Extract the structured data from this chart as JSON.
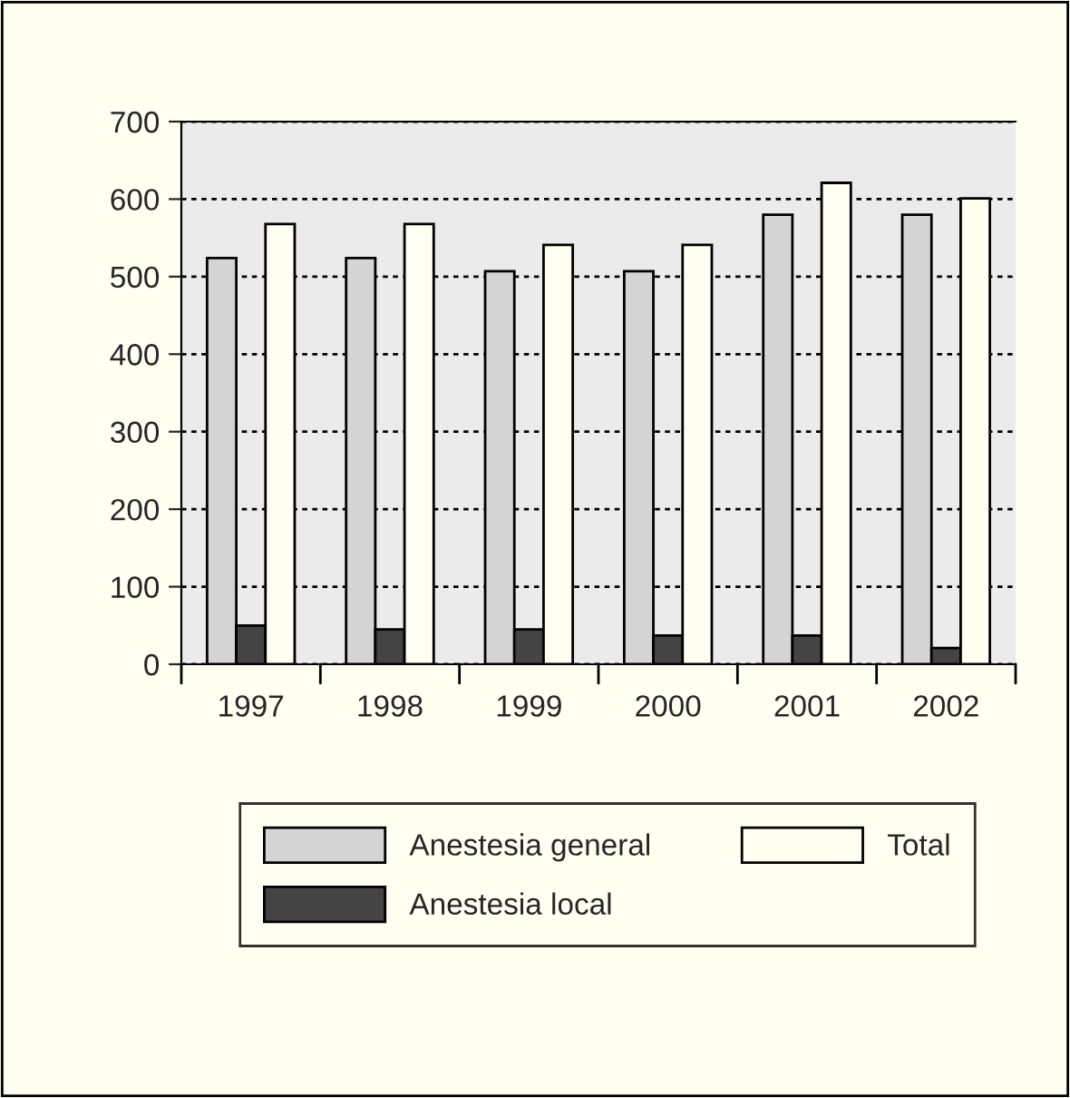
{
  "chart_data": {
    "type": "bar",
    "categories": [
      "1997",
      "1998",
      "1999",
      "2000",
      "2001",
      "2002"
    ],
    "series": [
      {
        "name": "Anestesia general",
        "color": "#d4d4d4",
        "values": [
          524,
          524,
          507,
          507,
          580,
          580
        ]
      },
      {
        "name": "Anestesia local",
        "color": "#444444",
        "values": [
          50,
          45,
          45,
          37,
          37,
          21
        ]
      },
      {
        "name": "Total",
        "color": "#fffff2",
        "values": [
          568,
          568,
          541,
          541,
          621,
          601
        ]
      }
    ],
    "ylim": [
      0,
      700
    ],
    "yticks": [
      0,
      100,
      200,
      300,
      400,
      500,
      600,
      700
    ],
    "grid": "y",
    "legend": "bottom"
  }
}
